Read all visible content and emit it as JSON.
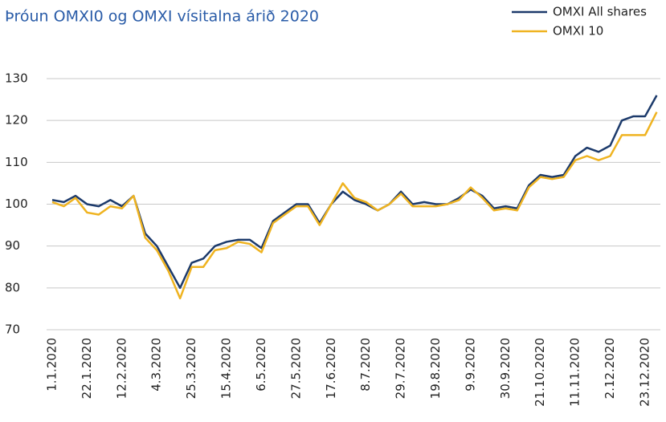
{
  "chart_data": {
    "type": "line",
    "title": "Þróun OMXI0 og OMXI vísitalna árið 2020",
    "categories": [
      "1.1.2020",
      null,
      null,
      "22.1.2020",
      null,
      null,
      "12.2.2020",
      null,
      null,
      "4.3.2020",
      null,
      null,
      "25.3.2020",
      null,
      null,
      "15.4.2020",
      null,
      null,
      "6.5.2020",
      null,
      null,
      "27.5.2020",
      null,
      null,
      "17.6.2020",
      null,
      null,
      "8.7.2020",
      null,
      null,
      "29.7.2020",
      null,
      null,
      "19.8.2020",
      null,
      null,
      "9.9.2020",
      null,
      null,
      "30.9.2020",
      null,
      null,
      "21.10.2020",
      null,
      null,
      "11.11.2020",
      null,
      null,
      "2.12.2020",
      null,
      null,
      "23.12.2020",
      null
    ],
    "series": [
      {
        "name": "OMXI All shares",
        "color": "#1c3a6b",
        "values": [
          101,
          100.5,
          102,
          100,
          99.5,
          101,
          99.5,
          102,
          93,
          90,
          85,
          80,
          86,
          87,
          90,
          91,
          91.5,
          91.5,
          89.5,
          96,
          98,
          100,
          100,
          95.5,
          100,
          103,
          101,
          100,
          98.5,
          100,
          103,
          100,
          100.5,
          100,
          100,
          101.5,
          103.5,
          102,
          99,
          99.5,
          99,
          104.5,
          107,
          106.5,
          107,
          111.5,
          113.5,
          112.5,
          114,
          120,
          121,
          121,
          126
        ]
      },
      {
        "name": "OMXI 10",
        "color": "#efb320",
        "values": [
          100.5,
          99.5,
          101.5,
          98,
          97.5,
          99.5,
          99,
          102,
          92,
          89,
          84,
          77.5,
          85,
          85,
          89,
          89.5,
          91,
          90.5,
          88.5,
          95.5,
          97.5,
          99.5,
          99.5,
          95,
          100,
          105,
          101.5,
          100.5,
          98.5,
          100,
          102.5,
          99.5,
          99.5,
          99.5,
          100,
          101,
          104,
          101.5,
          98.5,
          99,
          98.5,
          104,
          106.5,
          106,
          106.5,
          110.5,
          111.5,
          110.5,
          111.5,
          116.5,
          116.5,
          116.5,
          122
        ]
      }
    ],
    "ylim": [
      70,
      130
    ],
    "yticks": [
      70,
      80,
      90,
      100,
      110,
      120,
      130
    ],
    "grid": true,
    "legend": "top-right"
  }
}
